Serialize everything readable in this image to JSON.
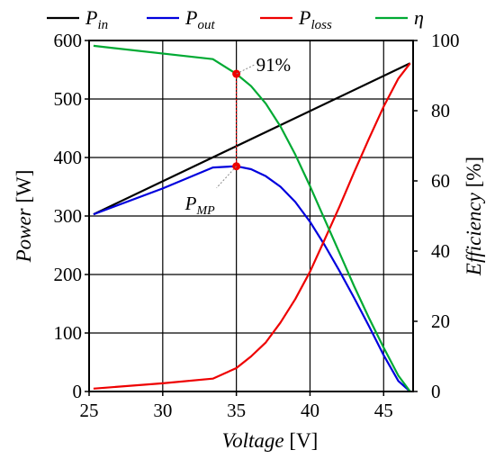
{
  "chart_data": {
    "type": "line",
    "xlabel": {
      "var": "Voltage",
      "unit": " [V]"
    },
    "ylabel_left": {
      "var": "Power",
      "unit": " [W]"
    },
    "ylabel_right": {
      "var": "Efficiency",
      "unit": " [%]"
    },
    "xlim": [
      25,
      47
    ],
    "ylim_left": [
      0,
      600
    ],
    "ylim_right": [
      0,
      100
    ],
    "x_ticks": [
      "25",
      "30",
      "35",
      "40",
      "45"
    ],
    "y_left_ticks": [
      "0",
      "100",
      "200",
      "300",
      "400",
      "500",
      "600"
    ],
    "y_right_ticks": [
      "0",
      "20",
      "40",
      "60",
      "80",
      "100"
    ],
    "grid": true,
    "legend_placement": "top",
    "series": [
      {
        "key": "pin",
        "name": "P",
        "sub": "in",
        "axis": "left",
        "color": "#000000",
        "x": [
          25.3,
          46.8
        ],
        "y": [
          303,
          561
        ]
      },
      {
        "key": "pout",
        "name": "P",
        "sub": "out",
        "axis": "left",
        "color": "#0000dd",
        "x": [
          25.3,
          30,
          33.4,
          35,
          36,
          37,
          38,
          39,
          40,
          41,
          42,
          43,
          44,
          45,
          46,
          46.8
        ],
        "y": [
          303,
          347,
          383,
          385,
          380,
          368,
          350,
          324,
          290,
          250,
          206,
          160,
          112,
          62,
          18,
          0
        ]
      },
      {
        "key": "ploss",
        "name": "P",
        "sub": "loss",
        "axis": "left",
        "color": "#ee0000",
        "x": [
          25.3,
          30,
          33.4,
          35,
          36,
          37,
          38,
          39,
          40,
          41,
          42,
          43,
          44,
          45,
          46,
          46.8
        ],
        "y": [
          5,
          14,
          22,
          40,
          60,
          84,
          118,
          158,
          205,
          260,
          316,
          375,
          432,
          487,
          535,
          561
        ]
      },
      {
        "key": "eta",
        "name": "η",
        "sub": "",
        "axis": "right",
        "color": "#00aa33",
        "x": [
          25.3,
          33.4,
          35,
          36,
          37,
          38,
          39,
          40,
          41,
          42,
          43,
          44,
          45,
          46,
          46.8
        ],
        "y": [
          98.5,
          94.7,
          90.5,
          87,
          82,
          75.5,
          67.5,
          58.5,
          49,
          39.5,
          30,
          21,
          12.5,
          4.5,
          0
        ]
      }
    ],
    "annotations": {
      "mpp_x": 35,
      "mpp_power": 385,
      "mpp_efficiency": 90.5,
      "label_pmp_main": "P",
      "label_pmp_sub": "MP",
      "label_eff": "91%",
      "marker_color": "#ee0000"
    }
  }
}
